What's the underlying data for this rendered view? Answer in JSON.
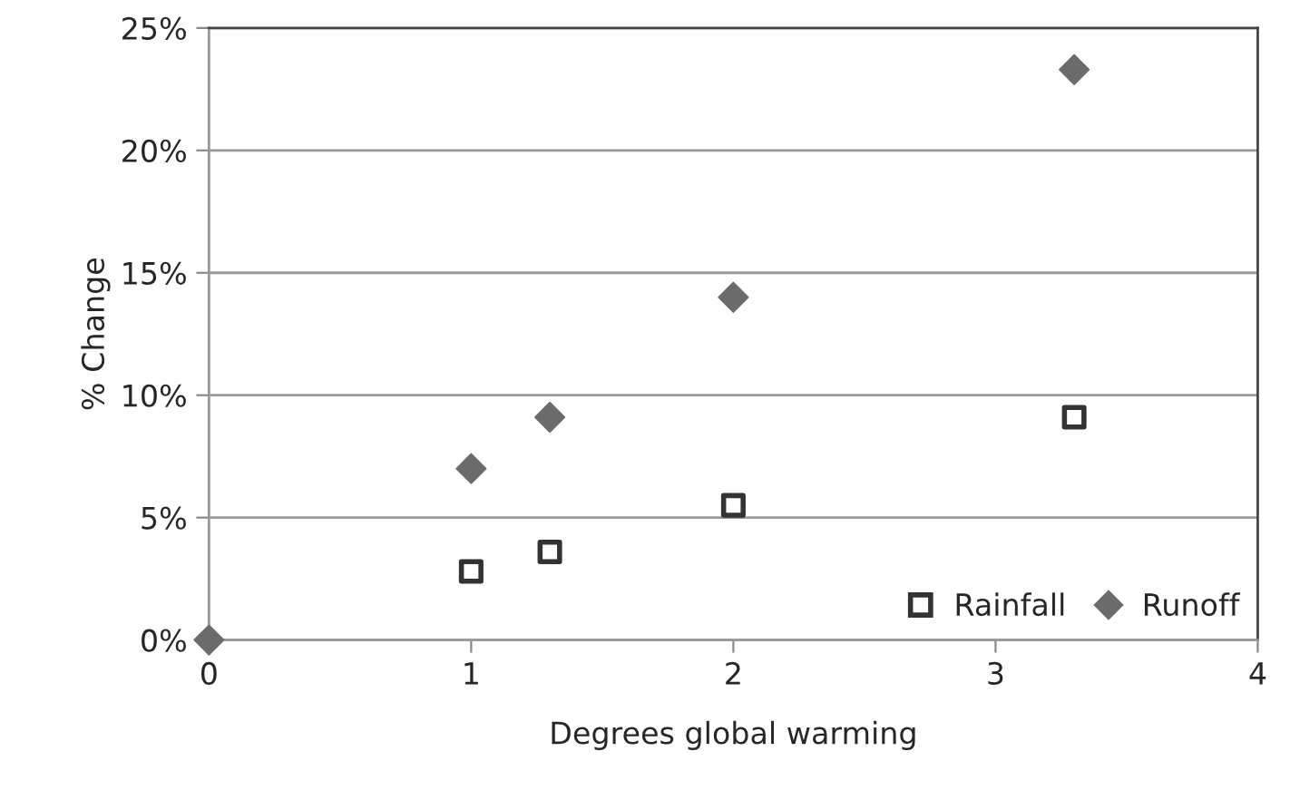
{
  "chart_data": {
    "type": "scatter",
    "xlabel": "Degrees global warming",
    "ylabel": "% Change",
    "series": [
      {
        "name": "Rainfall",
        "color": "#333333",
        "marker": "square",
        "x": [
          1,
          1.3,
          2,
          3.3
        ],
        "values": [
          2.8,
          3.6,
          5.5,
          9.1
        ]
      },
      {
        "name": "Runoff",
        "color": "#6b6b6b",
        "marker": "diamond",
        "x": [
          0,
          1,
          1.3,
          2,
          3.3
        ],
        "values": [
          0,
          7.0,
          9.1,
          14.0,
          23.3
        ]
      }
    ],
    "xlim": [
      0,
      4
    ],
    "xticks": [
      0,
      1,
      2,
      3,
      4
    ],
    "ylim": [
      0,
      25
    ],
    "yticks": [
      {
        "value": 0,
        "label": "0%"
      },
      {
        "value": 5,
        "label": "5%"
      },
      {
        "value": 10,
        "label": "10%"
      },
      {
        "value": 15,
        "label": "15%"
      },
      {
        "value": 20,
        "label": "20%"
      },
      {
        "value": 25,
        "label": "25%"
      }
    ],
    "grid": "y",
    "legend": "bottom right"
  }
}
